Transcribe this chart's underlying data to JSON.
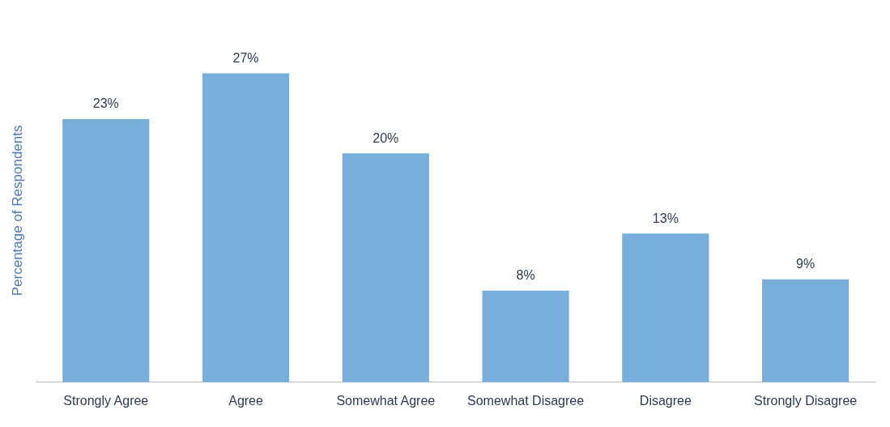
{
  "chart_data": {
    "type": "bar",
    "ylabel": "Percentage of Respondents",
    "categories": [
      "Strongly Agree",
      "Agree",
      "Somewhat Agree",
      "Somewhat Disagree",
      "Disagree",
      "Strongly Disagree"
    ],
    "values": [
      23,
      27,
      20,
      8,
      13,
      9
    ],
    "value_labels": [
      "23%",
      "27%",
      "20%",
      "8%",
      "13%",
      "9%"
    ],
    "color": "#77aedc",
    "grid": false,
    "legend": false
  }
}
